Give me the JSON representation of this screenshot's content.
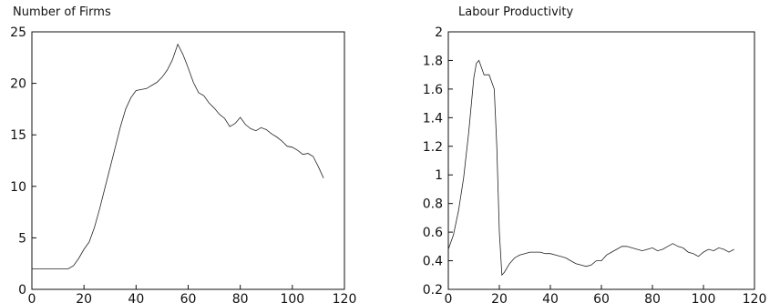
{
  "chart_data": [
    {
      "type": "line",
      "title": "Number of Firms",
      "xlabel": "",
      "ylabel": "",
      "xlim": [
        0,
        120
      ],
      "ylim": [
        0,
        25
      ],
      "xticks": [
        "0",
        "20",
        "40",
        "60",
        "80",
        "100",
        "120"
      ],
      "yticks": [
        "0",
        "5",
        "10",
        "15",
        "20",
        "25"
      ],
      "grid": false,
      "x": [
        0,
        2,
        4,
        6,
        8,
        10,
        12,
        14,
        16,
        18,
        20,
        22,
        24,
        26,
        28,
        30,
        32,
        34,
        36,
        38,
        40,
        42,
        44,
        46,
        48,
        50,
        52,
        54,
        56,
        58,
        60,
        62,
        64,
        66,
        68,
        70,
        72,
        74,
        76,
        78,
        80,
        82,
        84,
        86,
        88,
        90,
        92,
        94,
        96,
        98,
        100,
        102,
        104,
        106,
        108,
        110,
        112
      ],
      "series": [
        {
          "values": [
            2,
            2,
            2,
            2,
            2,
            2,
            2,
            2,
            2.3,
            3,
            3.9,
            4.6,
            6,
            7.8,
            9.8,
            11.8,
            13.8,
            15.8,
            17.5,
            18.6,
            19.3,
            19.4,
            19.5,
            19.8,
            20.1,
            20.6,
            21.3,
            22.3,
            23.8,
            22.8,
            21.5,
            20.1,
            19.1,
            18.8,
            18.1,
            17.6,
            17.0,
            16.6,
            15.8,
            16.1,
            16.7,
            16.0,
            15.6,
            15.4,
            15.7,
            15.5,
            15.1,
            14.8,
            14.4,
            13.9,
            13.8,
            13.5,
            13.1,
            13.2,
            12.9,
            11.9,
            10.8
          ]
        }
      ]
    },
    {
      "type": "line",
      "title": "Labour Productivity",
      "xlabel": "",
      "ylabel": "",
      "xlim": [
        0,
        120
      ],
      "ylim": [
        0.2,
        2
      ],
      "xticks": [
        "0",
        "20",
        "40",
        "60",
        "80",
        "100",
        "120"
      ],
      "yticks": [
        "0.2",
        "0.4",
        "0.6",
        "0.8",
        "1",
        "1.2",
        "1.4",
        "1.6",
        "1.8",
        "2"
      ],
      "grid": false,
      "x": [
        0,
        2,
        4,
        6,
        8,
        10,
        11,
        12,
        13,
        14,
        16,
        18,
        19,
        20,
        21,
        22,
        24,
        26,
        28,
        30,
        32,
        34,
        36,
        38,
        40,
        42,
        44,
        46,
        48,
        50,
        52,
        54,
        56,
        58,
        60,
        62,
        64,
        66,
        68,
        70,
        72,
        74,
        76,
        78,
        80,
        82,
        84,
        86,
        88,
        90,
        92,
        94,
        96,
        98,
        100,
        102,
        104,
        106,
        108,
        110,
        112
      ],
      "series": [
        {
          "values": [
            0.48,
            0.58,
            0.75,
            0.98,
            1.3,
            1.68,
            1.78,
            1.8,
            1.75,
            1.7,
            1.7,
            1.6,
            1.2,
            0.6,
            0.3,
            0.32,
            0.38,
            0.42,
            0.44,
            0.45,
            0.46,
            0.46,
            0.46,
            0.45,
            0.45,
            0.44,
            0.43,
            0.42,
            0.4,
            0.38,
            0.37,
            0.36,
            0.37,
            0.4,
            0.4,
            0.44,
            0.46,
            0.48,
            0.5,
            0.5,
            0.49,
            0.48,
            0.47,
            0.48,
            0.49,
            0.47,
            0.48,
            0.5,
            0.52,
            0.5,
            0.49,
            0.46,
            0.45,
            0.43,
            0.46,
            0.48,
            0.47,
            0.49,
            0.48,
            0.46,
            0.48
          ]
        }
      ]
    }
  ]
}
